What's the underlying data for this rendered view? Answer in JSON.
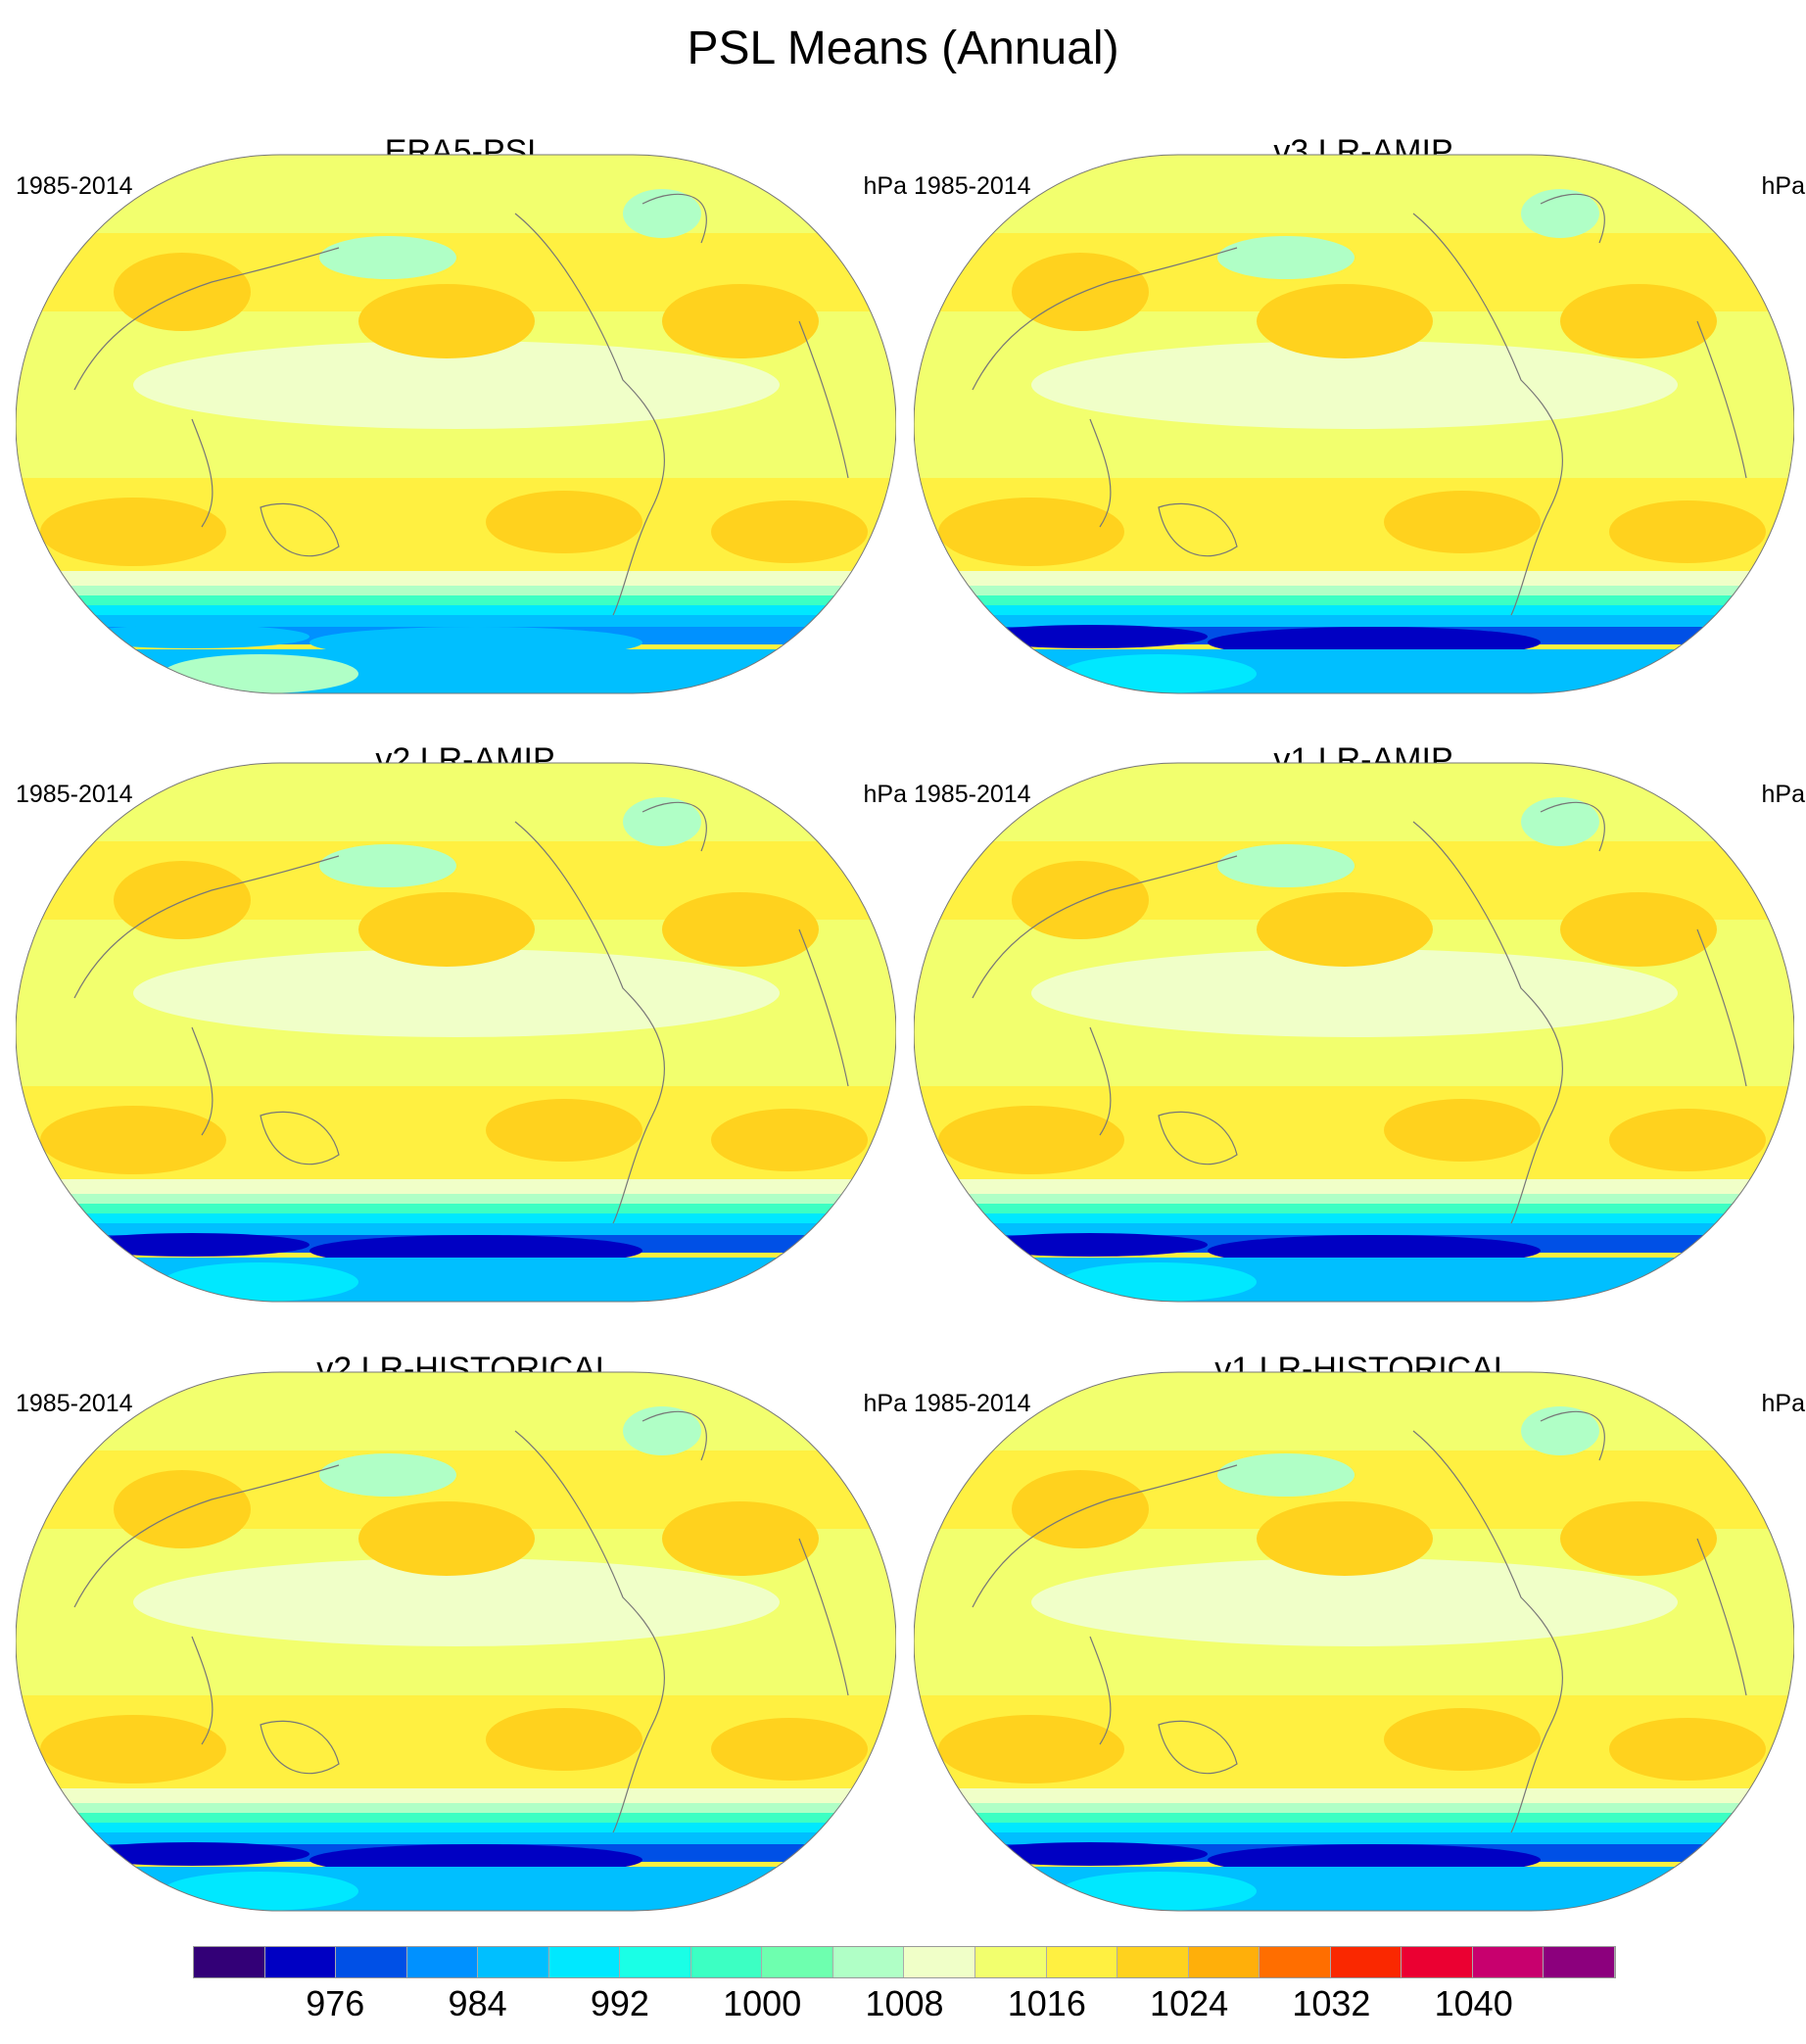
{
  "title": "PSL Means (Annual)",
  "panels": [
    {
      "title": "ERA5-PSL",
      "period": "1985-2014",
      "units": "hPa"
    },
    {
      "title": "v3.LR-AMIP",
      "period": "1985-2014",
      "units": "hPa"
    },
    {
      "title": "v2.LR-AMIP",
      "period": "1985-2014",
      "units": "hPa"
    },
    {
      "title": "v1.LR-AMIP",
      "period": "1985-2014",
      "units": "hPa"
    },
    {
      "title": "v2.LR-HISTORICAL",
      "period": "1985-2014",
      "units": "hPa"
    },
    {
      "title": "v1.LR-HISTORICAL",
      "period": "1985-2014",
      "units": "hPa"
    }
  ],
  "chart_data": {
    "type": "heatmap",
    "title": "PSL Means (Annual)",
    "units": "hPa",
    "period": "1985-2014",
    "colorbar": {
      "levels": [
        972,
        976,
        980,
        984,
        988,
        992,
        996,
        1000,
        1004,
        1008,
        1012,
        1016,
        1020,
        1024,
        1028,
        1032,
        1036,
        1040,
        1044
      ],
      "tick_labels": [
        "976",
        "984",
        "992",
        "1000",
        "1008",
        "1016",
        "1024",
        "1032",
        "1040"
      ],
      "colors": [
        "#330077",
        "#0000c3",
        "#0050e6",
        "#0091ff",
        "#00bfff",
        "#00e8ff",
        "#1affe6",
        "#3cffc3",
        "#6effaf",
        "#b0ffc6",
        "#f0ffc8",
        "#f2ff6e",
        "#fff041",
        "#ffd21e",
        "#ffaf0a",
        "#ff6e00",
        "#fa2800",
        "#eb0032",
        "#c8006e",
        "#8c007d"
      ]
    }
  }
}
